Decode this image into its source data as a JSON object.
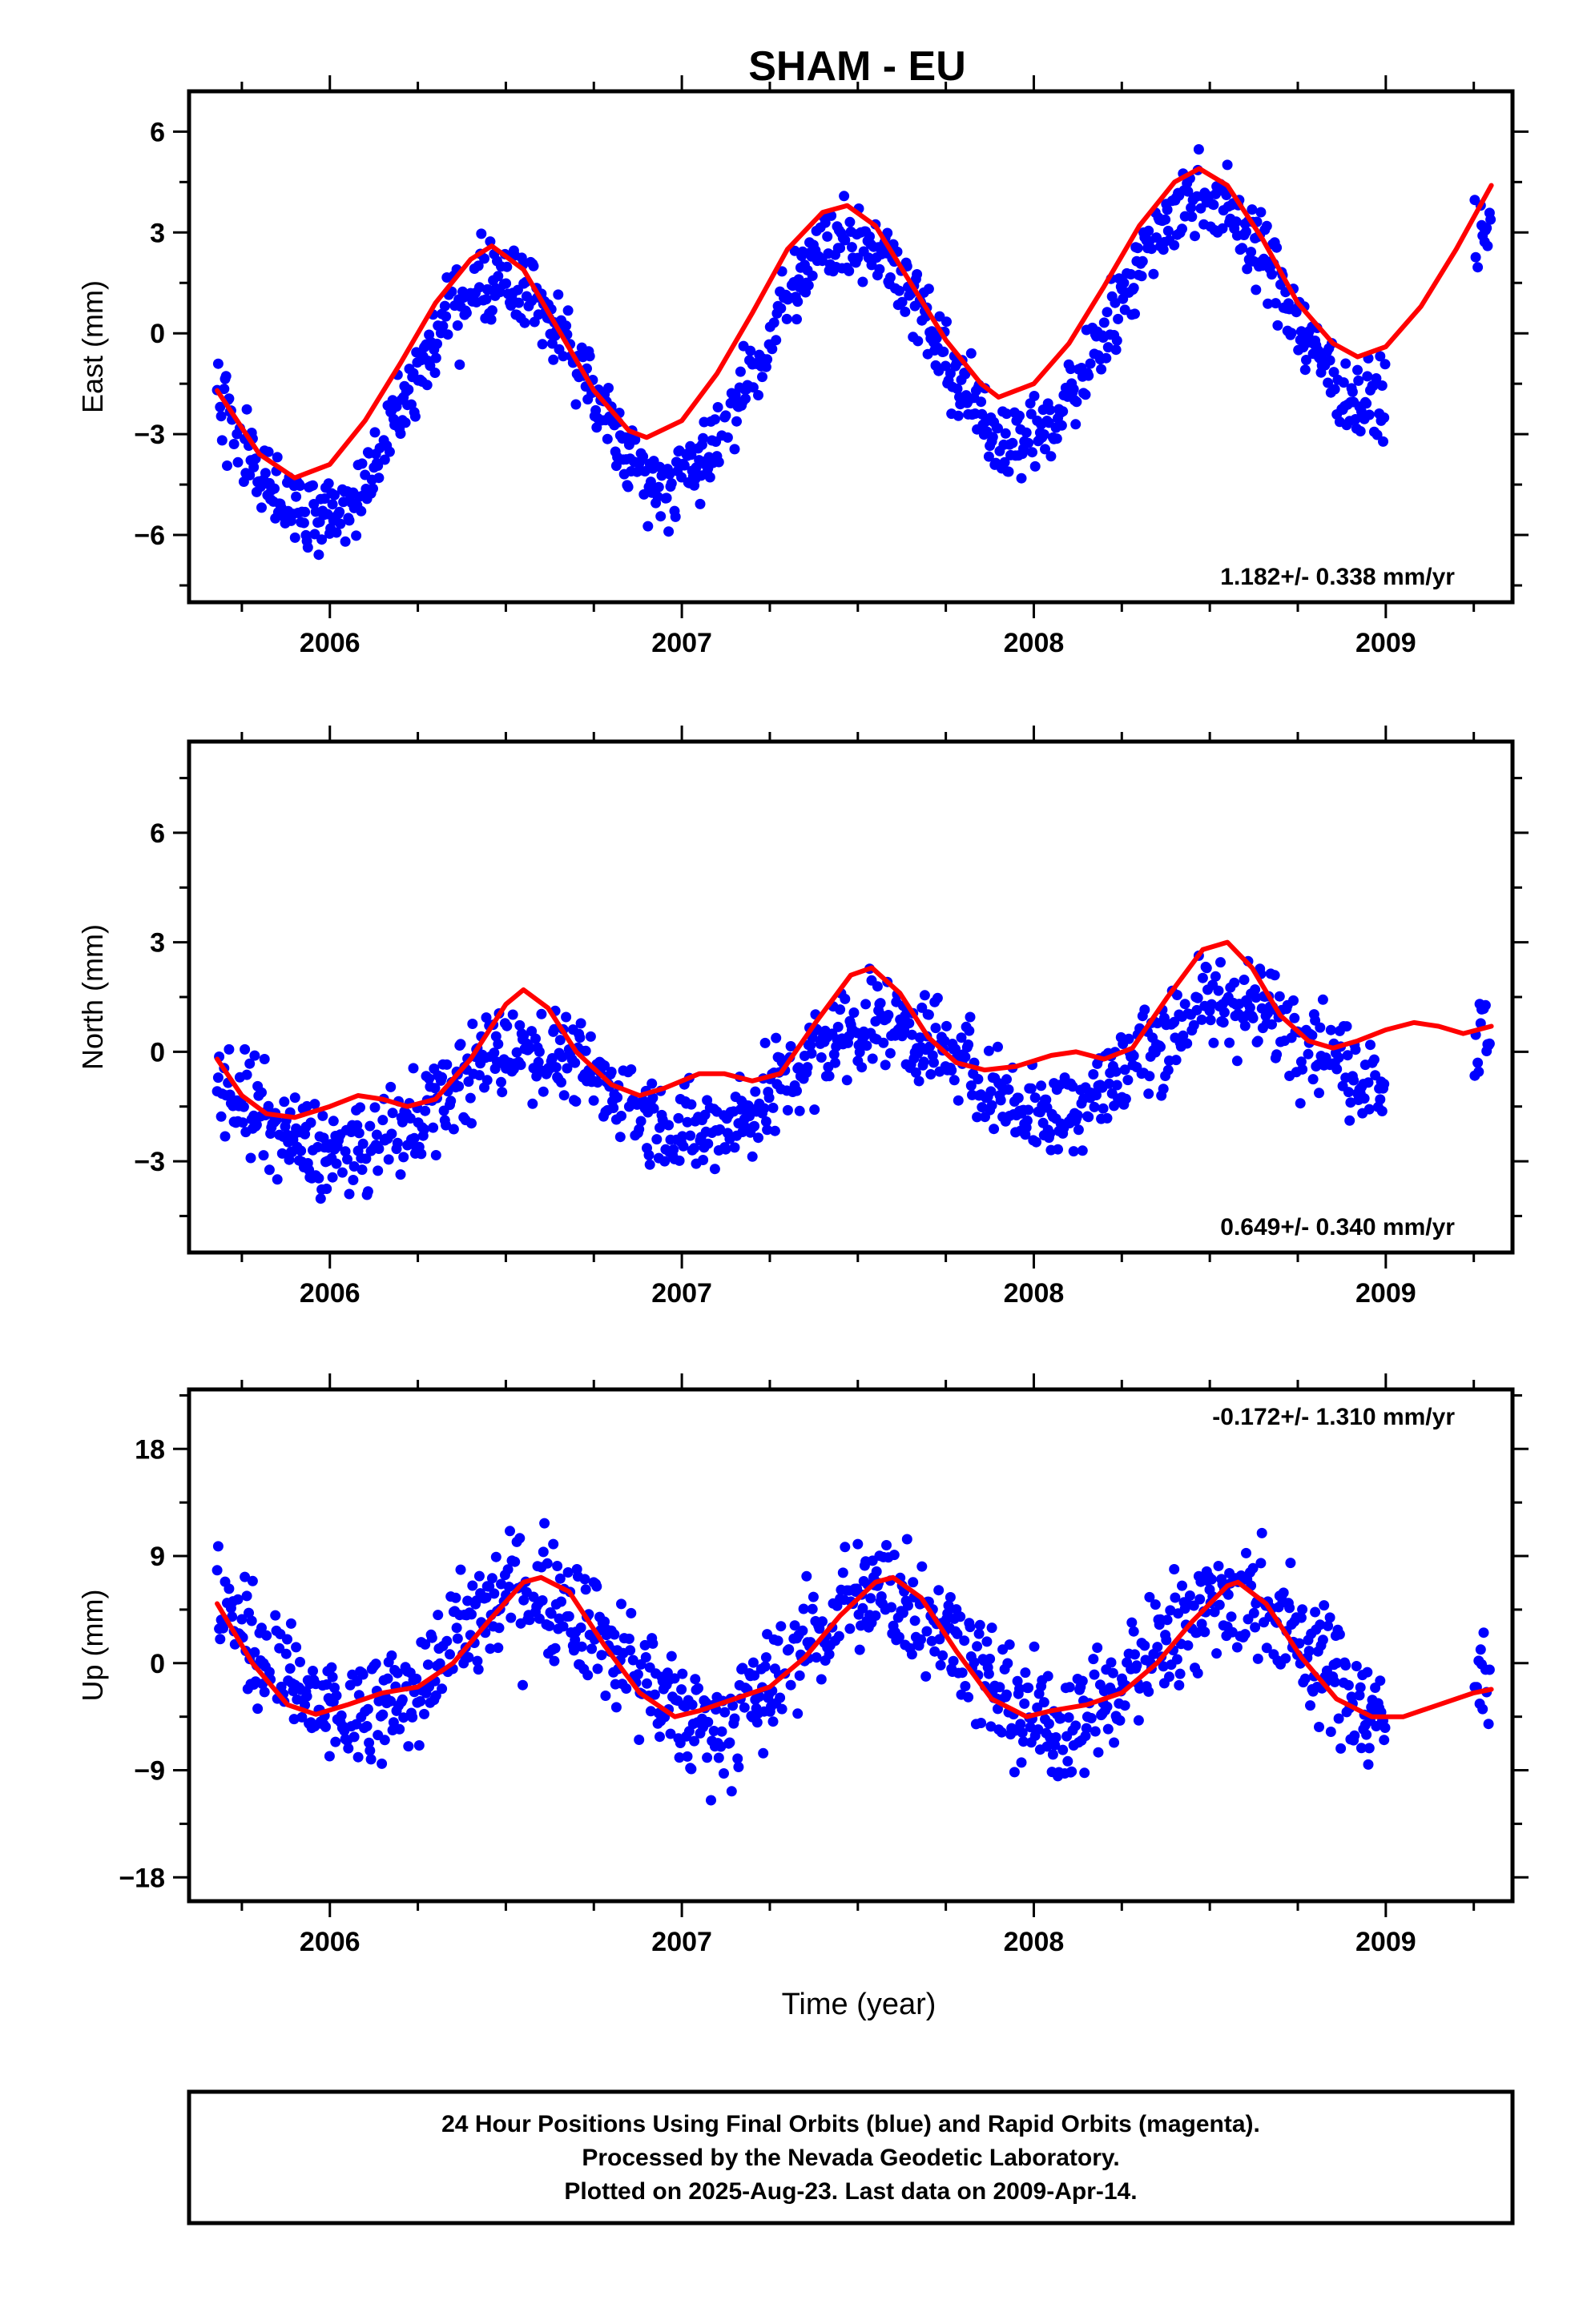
{
  "title": "SHAM - EU",
  "xlabel": "Time (year)",
  "footer": [
    "24 Hour Positions Using Final Orbits (blue) and Rapid Orbits (magenta).",
    "Processed by the Nevada Geodetic Laboratory.",
    "Plotted on 2025-Aug-23. Last data on 2009-Apr-14."
  ],
  "colors": {
    "points": "#0000ff",
    "fit": "#ff0000",
    "frame": "#000000"
  },
  "chart_data": [
    {
      "type": "scatter",
      "ylabel": "East (mm)",
      "rate": "1.182+/- 0.338 mm/yr",
      "rate_position": "bottom-right",
      "xlim": [
        2005.6,
        2009.36
      ],
      "ylim": [
        -8,
        7.2
      ],
      "xticks": [
        2006,
        2007,
        2008,
        2009
      ],
      "yticks": [
        -6,
        -3,
        0,
        3,
        6
      ],
      "tick_labels": [
        "-6",
        "-3",
        "0",
        "3",
        "6"
      ],
      "seasonal": {
        "amp": 3.35,
        "phase_peak": 0.47,
        "offset": -0.42,
        "noise": 1.0
      },
      "trend_mm_per_yr": 1.182,
      "fit": {
        "x": [
          2005.68,
          2005.8,
          2005.9,
          2006.0,
          2006.1,
          2006.2,
          2006.3,
          2006.4,
          2006.46,
          2006.55,
          2006.65,
          2006.75,
          2006.85,
          2006.9,
          2007.0,
          2007.1,
          2007.2,
          2007.3,
          2007.4,
          2007.47,
          2007.55,
          2007.65,
          2007.75,
          2007.85,
          2007.9,
          2008.0,
          2008.1,
          2008.2,
          2008.3,
          2008.4,
          2008.47,
          2008.55,
          2008.65,
          2008.75,
          2008.85,
          2008.92,
          2009.0,
          2009.1,
          2009.2,
          2009.3
        ],
        "y": [
          -1.7,
          -3.6,
          -4.3,
          -3.9,
          -2.6,
          -0.9,
          0.9,
          2.2,
          2.6,
          1.9,
          0.1,
          -1.7,
          -2.9,
          -3.1,
          -2.6,
          -1.2,
          0.6,
          2.5,
          3.6,
          3.8,
          3.2,
          1.5,
          -0.2,
          -1.5,
          -1.9,
          -1.5,
          -0.3,
          1.4,
          3.2,
          4.5,
          4.9,
          4.4,
          2.8,
          0.9,
          -0.3,
          -0.7,
          -0.4,
          0.8,
          2.5,
          4.4
        ]
      }
    },
    {
      "type": "scatter",
      "ylabel": "North (mm)",
      "rate": "0.649+/- 0.340 mm/yr",
      "rate_position": "bottom-right",
      "xlim": [
        2005.6,
        2009.36
      ],
      "ylim": [
        -5.5,
        8.5
      ],
      "xticks": [
        2006,
        2007,
        2008,
        2009
      ],
      "yticks": [
        -3,
        0,
        3,
        6
      ],
      "tick_labels": [
        "-3",
        "0",
        "3",
        "6"
      ],
      "seasonal": {
        "amp": 1.3,
        "phase_peak": 0.55,
        "offset": -0.6,
        "noise": 1.1
      },
      "trend_mm_per_yr": 0.649,
      "fit": {
        "x": [
          2005.68,
          2005.75,
          2005.82,
          2005.9,
          2006.0,
          2006.08,
          2006.15,
          2006.22,
          2006.3,
          2006.4,
          2006.5,
          2006.55,
          2006.62,
          2006.7,
          2006.8,
          2006.88,
          2006.95,
          2007.05,
          2007.12,
          2007.2,
          2007.28,
          2007.38,
          2007.48,
          2007.54,
          2007.62,
          2007.7,
          2007.78,
          2007.86,
          2007.95,
          2008.05,
          2008.12,
          2008.2,
          2008.28,
          2008.38,
          2008.48,
          2008.55,
          2008.62,
          2008.7,
          2008.78,
          2008.85,
          2008.92,
          2009.0,
          2009.08,
          2009.15,
          2009.22,
          2009.3
        ],
        "y": [
          -0.2,
          -1.2,
          -1.7,
          -1.8,
          -1.5,
          -1.2,
          -1.3,
          -1.5,
          -1.3,
          -0.2,
          1.3,
          1.7,
          1.2,
          0.0,
          -0.9,
          -1.2,
          -1.0,
          -0.6,
          -0.6,
          -0.8,
          -0.6,
          0.8,
          2.1,
          2.3,
          1.6,
          0.4,
          -0.3,
          -0.5,
          -0.4,
          -0.1,
          0.0,
          -0.2,
          0.1,
          1.5,
          2.8,
          3.0,
          2.3,
          1.0,
          0.3,
          0.1,
          0.3,
          0.6,
          0.8,
          0.7,
          0.5,
          0.7
        ]
      }
    },
    {
      "type": "scatter",
      "ylabel": "Up (mm)",
      "rate": "-0.172+/- 1.310 mm/yr",
      "rate_position": "top-right",
      "xlim": [
        2005.6,
        2009.36
      ],
      "ylim": [
        -20,
        23
      ],
      "xticks": [
        2006,
        2007,
        2008,
        2009
      ],
      "yticks": [
        -18,
        -9,
        0,
        9,
        18
      ],
      "tick_labels": [
        "-18",
        "-9",
        "0",
        "9",
        "18"
      ],
      "seasonal": {
        "amp": 5.5,
        "phase_peak": 0.57,
        "offset": 0.4,
        "noise": 4.2
      },
      "trend_mm_per_yr": -0.172,
      "fit": {
        "x": [
          2005.68,
          2005.78,
          2005.88,
          2005.96,
          2006.05,
          2006.15,
          2006.25,
          2006.35,
          2006.45,
          2006.55,
          2006.6,
          2006.68,
          2006.78,
          2006.88,
          2006.98,
          2007.05,
          2007.15,
          2007.25,
          2007.35,
          2007.45,
          2007.55,
          2007.6,
          2007.68,
          2007.78,
          2007.88,
          2007.98,
          2008.05,
          2008.15,
          2008.25,
          2008.35,
          2008.45,
          2008.55,
          2008.58,
          2008.66,
          2008.76,
          2008.86,
          2008.96,
          2009.05,
          2009.15,
          2009.25,
          2009.3
        ],
        "y": [
          5.0,
          0.0,
          -3.5,
          -4.3,
          -3.5,
          -2.5,
          -2.0,
          0.0,
          3.5,
          6.8,
          7.2,
          6.0,
          1.5,
          -2.5,
          -4.5,
          -4.0,
          -3.0,
          -2.0,
          0.5,
          4.0,
          6.8,
          7.2,
          5.5,
          1.0,
          -3.0,
          -4.5,
          -4.0,
          -3.5,
          -2.5,
          0.0,
          3.5,
          6.5,
          6.8,
          5.0,
          0.5,
          -3.0,
          -4.5,
          -4.5,
          -3.5,
          -2.5,
          -2.2
        ]
      }
    }
  ]
}
